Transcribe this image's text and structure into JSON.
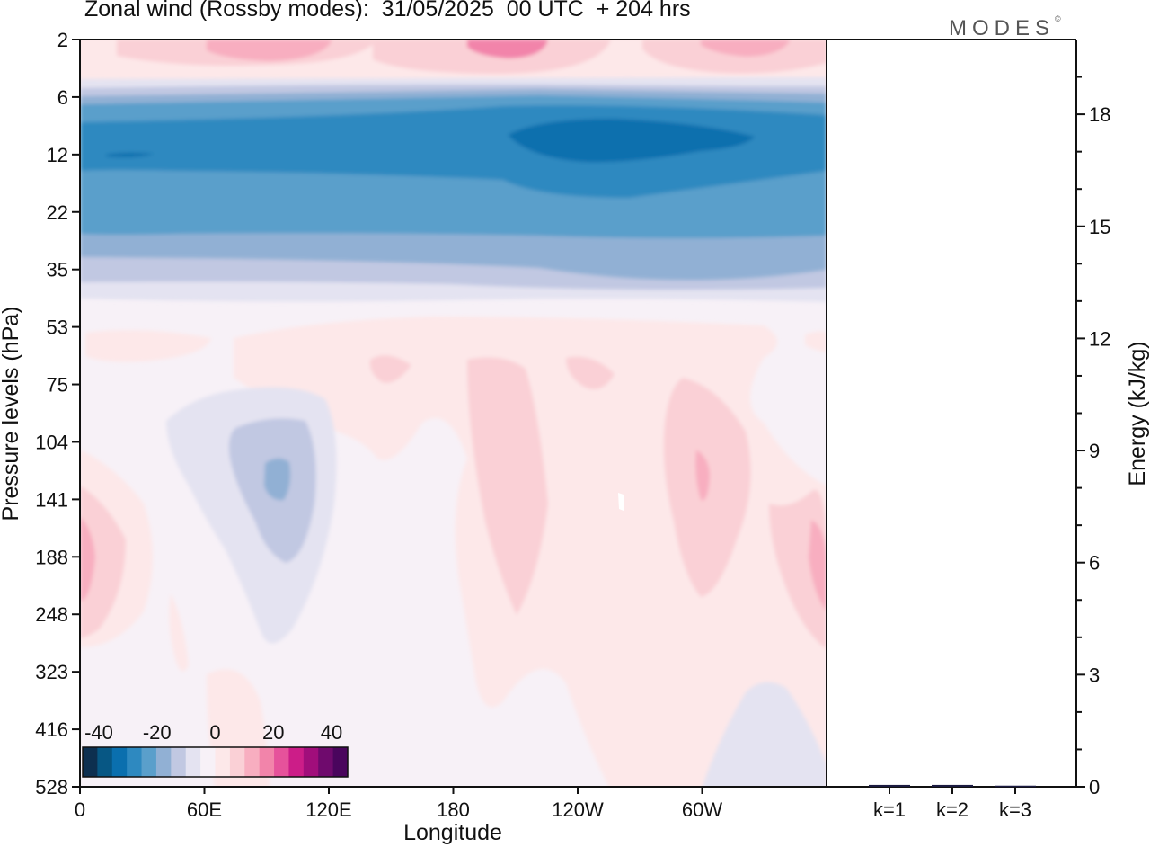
{
  "title": "Zonal wind (Rossby modes):  31/05/2025  00 UTC  + 204 hrs",
  "brand": {
    "name": "MODES",
    "mark": "©"
  },
  "chart_data": [
    {
      "type": "heatmap",
      "xlabel": "Longitude",
      "ylabel": "Pressure levels (hPa)",
      "x_ticks": [
        "0",
        "60E",
        "120E",
        "180",
        "120W",
        "60W"
      ],
      "x_tick_values": [
        0,
        60,
        120,
        180,
        240,
        300
      ],
      "x_range": [
        0,
        360
      ],
      "y_ticks": [
        "2",
        "6",
        "12",
        "22",
        "35",
        "53",
        "75",
        "104",
        "141",
        "188",
        "248",
        "323",
        "416",
        "528"
      ],
      "colorbar": {
        "tick_labels": [
          "-40",
          "-20",
          "0",
          "20",
          "40"
        ],
        "range": [
          -40,
          40
        ],
        "colors": [
          "#0d2f50",
          "#075784",
          "#0a6fae",
          "#2e89c0",
          "#5a9fcb",
          "#91b0d4",
          "#c1c8e2",
          "#e4e3f1",
          "#f7f1f7",
          "#fde8e9",
          "#fad0d6",
          "#f8aec0",
          "#f284aa",
          "#e6529b",
          "#cc1d88",
          "#a10e7b",
          "#6f0a6d",
          "#4a055d"
        ]
      },
      "grid": false
    },
    {
      "type": "bar",
      "categories": [
        "k=1",
        "k=2",
        "k=3"
      ],
      "values": [
        0.05,
        0.05,
        0.03
      ],
      "ylabel": "Energy (kJ/kg)",
      "y_ticks": [
        "0",
        "3",
        "6",
        "9",
        "12",
        "15",
        "18"
      ],
      "ylim": [
        0,
        20
      ],
      "grid": false
    }
  ]
}
